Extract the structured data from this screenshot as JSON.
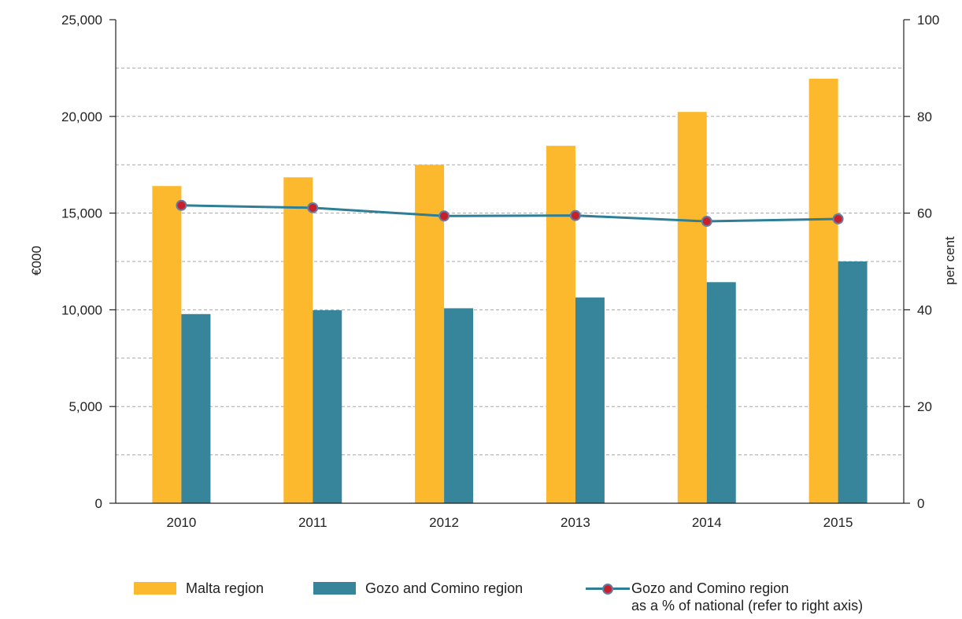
{
  "chart_data": {
    "type": "bar",
    "categories": [
      "2010",
      "2011",
      "2012",
      "2013",
      "2014",
      "2015"
    ],
    "series": [
      {
        "name": "Malta region",
        "type": "bar",
        "axis": "left",
        "color": "#FDB92E",
        "values": [
          16400,
          16850,
          17500,
          18480,
          20230,
          21950
        ]
      },
      {
        "name": "Gozo and Comino region",
        "type": "bar",
        "axis": "left",
        "color": "#37859A",
        "values": [
          9780,
          9980,
          10080,
          10640,
          11430,
          12500
        ]
      },
      {
        "name": "Gozo and Comino region as a % of national (refer to right axis)",
        "type": "line",
        "axis": "right",
        "color": "#2E7E96",
        "marker_color": "#C8202A",
        "values": [
          61.6,
          61.1,
          59.4,
          59.5,
          58.3,
          58.8
        ]
      }
    ],
    "y_left": {
      "label": "€000",
      "min": 0,
      "max": 25000,
      "ticks": [
        0,
        5000,
        10000,
        15000,
        20000,
        25000
      ],
      "tick_labels": [
        "0",
        "5,000",
        "10,000",
        "15,000",
        "20,000",
        "25,000"
      ]
    },
    "y_right": {
      "label": "per cent",
      "min": 0,
      "max": 100,
      "ticks": [
        0,
        20,
        40,
        60,
        80,
        100
      ],
      "tick_labels": [
        "0",
        "20",
        "40",
        "60",
        "80",
        "100"
      ]
    },
    "grid": true,
    "legend_position": "bottom",
    "legend": {
      "items": [
        {
          "label": "Malta region",
          "kind": "bar",
          "color": "#FDB92E"
        },
        {
          "label": "Gozo and Comino region",
          "kind": "bar",
          "color": "#37859A"
        },
        {
          "label": "Gozo and Comino region",
          "label_line2": "as a % of national (refer to right axis)",
          "kind": "line",
          "color": "#2E7E96",
          "marker_color": "#C8202A"
        }
      ]
    }
  }
}
